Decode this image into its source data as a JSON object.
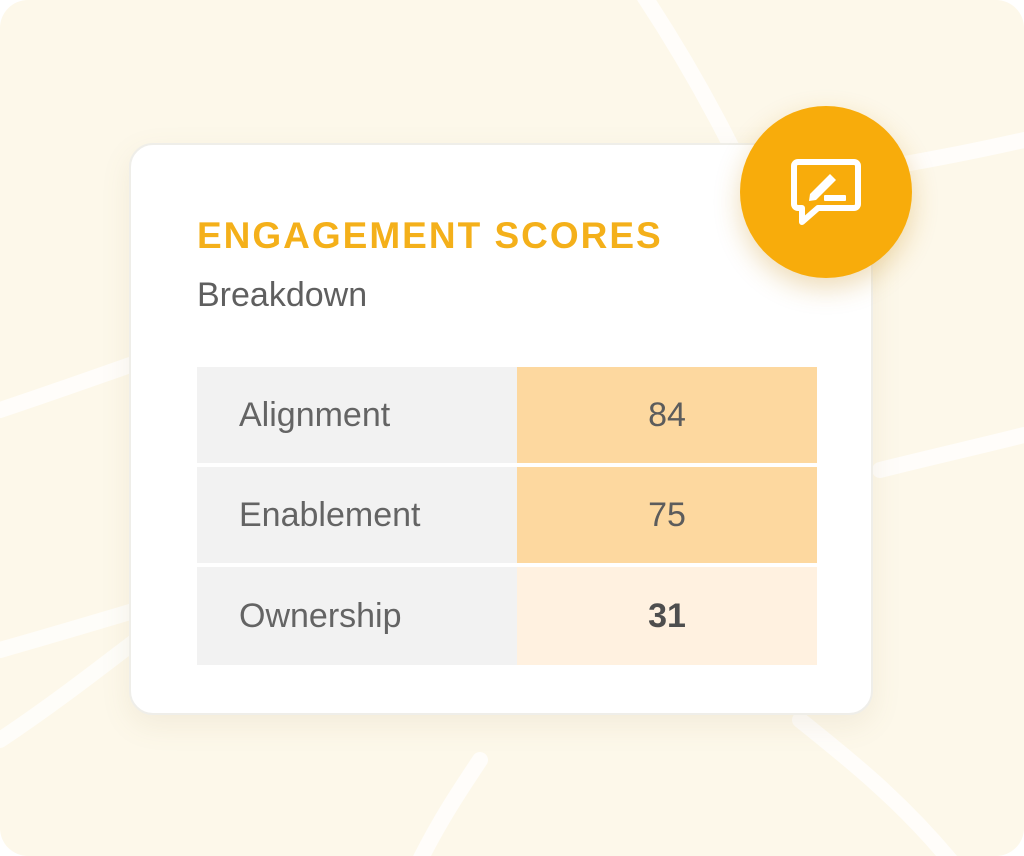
{
  "header": {
    "title": "ENGAGEMENT SCORES",
    "subtitle": "Breakdown"
  },
  "badge": {
    "icon": "feedback-edit-icon",
    "color": "#f8ac0b"
  },
  "scores": {
    "rows": [
      {
        "label": "Alignment",
        "value": "84",
        "cell_color": "#fdd89f"
      },
      {
        "label": "Enablement",
        "value": "75",
        "cell_color": "#fdd89f"
      },
      {
        "label": "Ownership",
        "value": "31",
        "cell_color": "#fff1e0"
      }
    ]
  },
  "colors": {
    "accent": "#f4b01a",
    "background": "#fdf8ea"
  }
}
